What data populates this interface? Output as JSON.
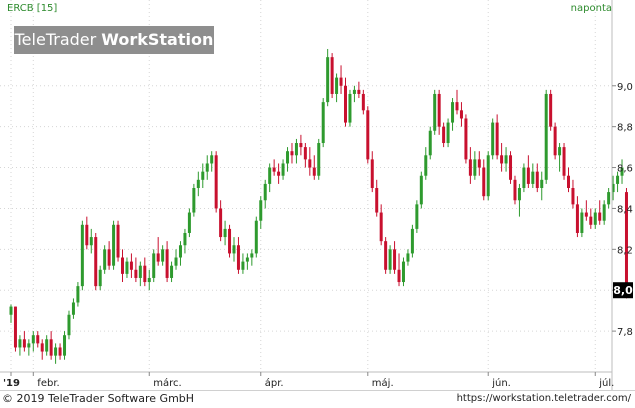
{
  "header": {
    "symbol": "ERCB [15]",
    "interval": "naponta"
  },
  "watermark": {
    "part1": "TeleTrader ",
    "part2": "WorkStation"
  },
  "footer": {
    "copyright": "© 2019 TeleTrader Software GmbH",
    "url": "https://workstation.teletrader.com/"
  },
  "last_price_label": "8,0",
  "colors": {
    "up": "#2e9a2e",
    "down": "#c8102e",
    "grid": "#d6d6d6",
    "text": "#222222"
  },
  "chart_data": {
    "type": "candlestick",
    "title": "ERCB [15]",
    "ylim": [
      7.6,
      9.4
    ],
    "yticks": [
      {
        "v": 7.8,
        "label": "7,8"
      },
      {
        "v": 8.0,
        "label": "8,0"
      },
      {
        "v": 8.2,
        "label": "8,2"
      },
      {
        "v": 8.4,
        "label": "8,4"
      },
      {
        "v": 8.6,
        "label": "8,6"
      },
      {
        "v": 8.8,
        "label": "8,8"
      },
      {
        "v": 9.0,
        "label": "9,0"
      }
    ],
    "xticks": [
      {
        "i": 0,
        "label": "'19"
      },
      {
        "i": 5,
        "label": "febr."
      },
      {
        "i": 31,
        "label": "márc."
      },
      {
        "i": 56,
        "label": "ápr."
      },
      {
        "i": 80,
        "label": "máj."
      },
      {
        "i": 107,
        "label": "jún."
      },
      {
        "i": 131,
        "label": "júl."
      }
    ],
    "gridlines": "dotted",
    "candles": [
      [
        7.88,
        7.93,
        7.84,
        7.92
      ],
      [
        7.92,
        7.92,
        7.7,
        7.72
      ],
      [
        7.72,
        7.78,
        7.68,
        7.76
      ],
      [
        7.76,
        7.8,
        7.7,
        7.72
      ],
      [
        7.72,
        7.76,
        7.68,
        7.74
      ],
      [
        7.74,
        7.8,
        7.7,
        7.78
      ],
      [
        7.78,
        7.8,
        7.72,
        7.74
      ],
      [
        7.74,
        7.76,
        7.66,
        7.7
      ],
      [
        7.7,
        7.78,
        7.68,
        7.76
      ],
      [
        7.76,
        7.8,
        7.66,
        7.68
      ],
      [
        7.68,
        7.74,
        7.64,
        7.72
      ],
      [
        7.72,
        7.74,
        7.66,
        7.68
      ],
      [
        7.68,
        7.8,
        7.66,
        7.78
      ],
      [
        7.78,
        7.9,
        7.76,
        7.88
      ],
      [
        7.88,
        7.96,
        7.86,
        7.94
      ],
      [
        7.94,
        8.04,
        7.92,
        8.02
      ],
      [
        8.02,
        8.34,
        8.0,
        8.32
      ],
      [
        8.32,
        8.36,
        8.2,
        8.22
      ],
      [
        8.22,
        8.3,
        8.18,
        8.26
      ],
      [
        8.26,
        8.28,
        8.0,
        8.02
      ],
      [
        8.02,
        8.12,
        8.0,
        8.1
      ],
      [
        8.1,
        8.22,
        8.08,
        8.2
      ],
      [
        8.2,
        8.24,
        8.1,
        8.12
      ],
      [
        8.12,
        8.34,
        8.1,
        8.32
      ],
      [
        8.32,
        8.34,
        8.14,
        8.16
      ],
      [
        8.16,
        8.2,
        8.04,
        8.08
      ],
      [
        8.08,
        8.16,
        8.06,
        8.14
      ],
      [
        8.14,
        8.18,
        8.06,
        8.1
      ],
      [
        8.1,
        8.16,
        8.04,
        8.06
      ],
      [
        8.06,
        8.14,
        8.02,
        8.12
      ],
      [
        8.12,
        8.16,
        8.02,
        8.04
      ],
      [
        8.04,
        8.1,
        8.0,
        8.06
      ],
      [
        8.06,
        8.2,
        8.04,
        8.18
      ],
      [
        8.18,
        8.26,
        8.12,
        8.14
      ],
      [
        8.14,
        8.22,
        8.12,
        8.2
      ],
      [
        8.2,
        8.24,
        8.04,
        8.06
      ],
      [
        8.06,
        8.14,
        8.04,
        8.12
      ],
      [
        8.12,
        8.2,
        8.1,
        8.16
      ],
      [
        8.16,
        8.24,
        8.12,
        8.22
      ],
      [
        8.22,
        8.3,
        8.18,
        8.28
      ],
      [
        8.28,
        8.4,
        8.26,
        8.38
      ],
      [
        8.38,
        8.52,
        8.36,
        8.5
      ],
      [
        8.5,
        8.58,
        8.46,
        8.54
      ],
      [
        8.54,
        8.62,
        8.5,
        8.58
      ],
      [
        8.58,
        8.66,
        8.54,
        8.62
      ],
      [
        8.62,
        8.68,
        8.58,
        8.66
      ],
      [
        8.66,
        8.68,
        8.38,
        8.4
      ],
      [
        8.4,
        8.44,
        8.24,
        8.26
      ],
      [
        8.26,
        8.34,
        8.22,
        8.3
      ],
      [
        8.3,
        8.32,
        8.16,
        8.18
      ],
      [
        8.18,
        8.26,
        8.14,
        8.22
      ],
      [
        8.22,
        8.26,
        8.08,
        8.1
      ],
      [
        8.1,
        8.18,
        8.08,
        8.14
      ],
      [
        8.14,
        8.18,
        8.1,
        8.16
      ],
      [
        8.16,
        8.2,
        8.12,
        8.18
      ],
      [
        8.18,
        8.36,
        8.16,
        8.34
      ],
      [
        8.34,
        8.46,
        8.3,
        8.44
      ],
      [
        8.44,
        8.54,
        8.4,
        8.52
      ],
      [
        8.52,
        8.62,
        8.48,
        8.6
      ],
      [
        8.6,
        8.64,
        8.56,
        8.58
      ],
      [
        8.58,
        8.62,
        8.52,
        8.56
      ],
      [
        8.56,
        8.64,
        8.54,
        8.62
      ],
      [
        8.62,
        8.7,
        8.58,
        8.68
      ],
      [
        8.68,
        8.72,
        8.62,
        8.66
      ],
      [
        8.66,
        8.74,
        8.62,
        8.72
      ],
      [
        8.72,
        8.76,
        8.66,
        8.7
      ],
      [
        8.7,
        8.72,
        8.6,
        8.64
      ],
      [
        8.64,
        8.7,
        8.56,
        8.6
      ],
      [
        8.6,
        8.66,
        8.54,
        8.56
      ],
      [
        8.56,
        8.74,
        8.54,
        8.72
      ],
      [
        8.72,
        8.94,
        8.7,
        8.92
      ],
      [
        8.92,
        9.18,
        8.9,
        9.14
      ],
      [
        9.14,
        9.16,
        8.94,
        8.96
      ],
      [
        8.96,
        9.06,
        8.92,
        9.04
      ],
      [
        9.04,
        9.1,
        8.96,
        9.0
      ],
      [
        9.0,
        9.04,
        8.8,
        8.82
      ],
      [
        8.82,
        8.98,
        8.8,
        8.96
      ],
      [
        8.96,
        9.0,
        8.92,
        8.98
      ],
      [
        8.98,
        9.02,
        8.94,
        8.96
      ],
      [
        8.96,
        8.98,
        8.86,
        8.88
      ],
      [
        8.88,
        8.9,
        8.62,
        8.64
      ],
      [
        8.64,
        8.68,
        8.48,
        8.5
      ],
      [
        8.5,
        8.54,
        8.36,
        8.38
      ],
      [
        8.38,
        8.42,
        8.22,
        8.24
      ],
      [
        8.24,
        8.26,
        8.08,
        8.1
      ],
      [
        8.1,
        8.22,
        8.08,
        8.2
      ],
      [
        8.2,
        8.24,
        8.08,
        8.1
      ],
      [
        8.1,
        8.18,
        8.02,
        8.04
      ],
      [
        8.04,
        8.16,
        8.02,
        8.14
      ],
      [
        8.14,
        8.2,
        8.12,
        8.18
      ],
      [
        8.18,
        8.32,
        8.16,
        8.3
      ],
      [
        8.3,
        8.44,
        8.28,
        8.42
      ],
      [
        8.42,
        8.58,
        8.4,
        8.56
      ],
      [
        8.56,
        8.7,
        8.54,
        8.66
      ],
      [
        8.66,
        8.8,
        8.64,
        8.78
      ],
      [
        8.78,
        8.98,
        8.76,
        8.96
      ],
      [
        8.96,
        8.98,
        8.76,
        8.8
      ],
      [
        8.8,
        8.82,
        8.7,
        8.72
      ],
      [
        8.72,
        8.84,
        8.7,
        8.82
      ],
      [
        8.82,
        8.94,
        8.78,
        8.92
      ],
      [
        8.92,
        8.98,
        8.86,
        8.88
      ],
      [
        8.88,
        8.92,
        8.8,
        8.84
      ],
      [
        8.84,
        8.86,
        8.62,
        8.64
      ],
      [
        8.64,
        8.7,
        8.52,
        8.56
      ],
      [
        8.56,
        8.68,
        8.54,
        8.64
      ],
      [
        8.64,
        8.68,
        8.56,
        8.6
      ],
      [
        8.6,
        8.64,
        8.44,
        8.46
      ],
      [
        8.46,
        8.68,
        8.44,
        8.66
      ],
      [
        8.66,
        8.84,
        8.64,
        8.82
      ],
      [
        8.82,
        8.86,
        8.64,
        8.66
      ],
      [
        8.66,
        8.72,
        8.58,
        8.62
      ],
      [
        8.62,
        8.7,
        8.58,
        8.66
      ],
      [
        8.66,
        8.68,
        8.52,
        8.54
      ],
      [
        8.54,
        8.56,
        8.42,
        8.44
      ],
      [
        8.44,
        8.52,
        8.36,
        8.5
      ],
      [
        8.5,
        8.62,
        8.48,
        8.6
      ],
      [
        8.6,
        8.66,
        8.5,
        8.52
      ],
      [
        8.52,
        8.62,
        8.5,
        8.58
      ],
      [
        8.58,
        8.62,
        8.48,
        8.5
      ],
      [
        8.5,
        8.58,
        8.44,
        8.54
      ],
      [
        8.54,
        8.98,
        8.52,
        8.96
      ],
      [
        8.96,
        8.98,
        8.78,
        8.8
      ],
      [
        8.8,
        8.82,
        8.64,
        8.66
      ],
      [
        8.66,
        8.72,
        8.58,
        8.7
      ],
      [
        8.7,
        8.72,
        8.54,
        8.56
      ],
      [
        8.56,
        8.6,
        8.48,
        8.5
      ],
      [
        8.5,
        8.54,
        8.4,
        8.42
      ],
      [
        8.42,
        8.46,
        8.26,
        8.28
      ],
      [
        8.28,
        8.4,
        8.26,
        8.38
      ],
      [
        8.38,
        8.44,
        8.34,
        8.36
      ],
      [
        8.36,
        8.4,
        8.3,
        8.32
      ],
      [
        8.32,
        8.4,
        8.3,
        8.38
      ],
      [
        8.38,
        8.44,
        8.32,
        8.34
      ],
      [
        8.34,
        8.44,
        8.32,
        8.42
      ],
      [
        8.42,
        8.5,
        8.4,
        8.48
      ],
      [
        8.48,
        8.56,
        8.44,
        8.52
      ],
      [
        8.52,
        8.58,
        8.48,
        8.56
      ],
      [
        8.56,
        8.64,
        8.52,
        8.6
      ],
      [
        8.48,
        8.5,
        7.96,
        8.0
      ]
    ]
  }
}
